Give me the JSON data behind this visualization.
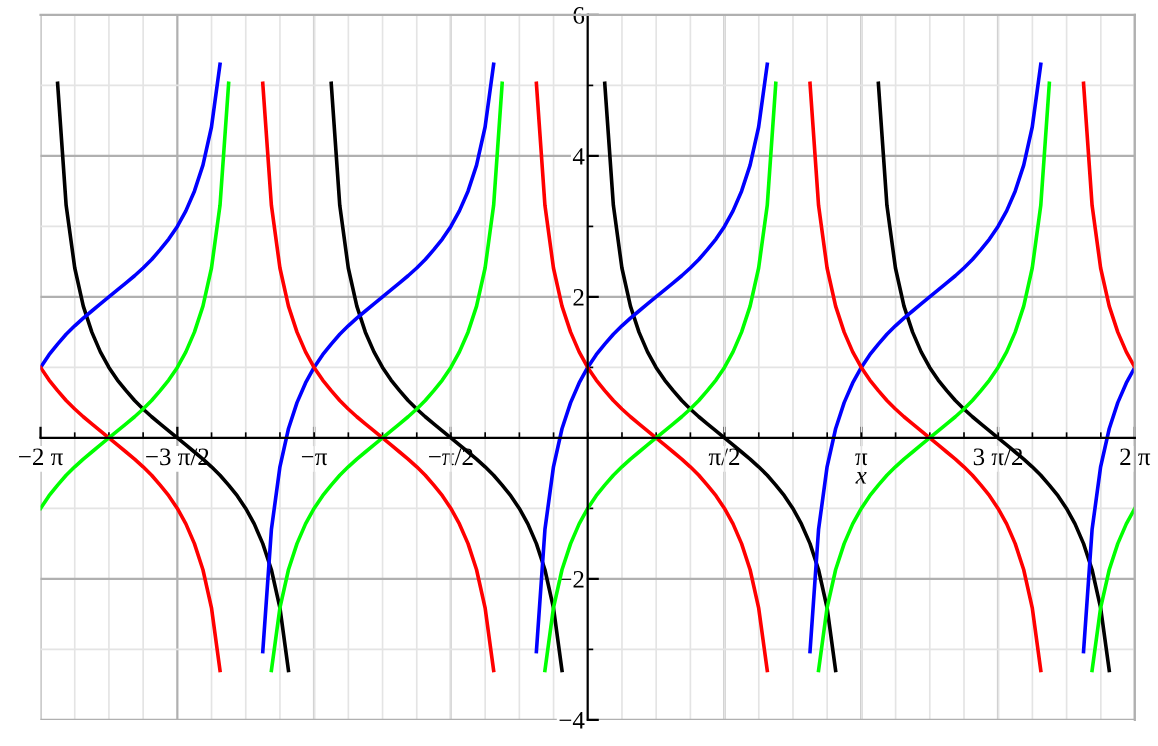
{
  "chart_data": {
    "type": "line",
    "xlabel": "x",
    "x": [
      -6.283,
      -6.185,
      -6.087,
      -5.989,
      -5.89,
      -5.792,
      -5.694,
      -5.596,
      -5.498,
      -5.4,
      -5.301,
      -5.203,
      -5.105,
      -5.007,
      -4.909,
      -4.811,
      -4.712,
      -4.614,
      -4.516,
      -4.418,
      -4.32,
      -4.222,
      -4.123,
      -4.025,
      -3.927,
      -3.829,
      -3.731,
      -3.632,
      -3.534,
      -3.436,
      -3.338,
      -3.24,
      -3.142,
      -3.043,
      -2.945,
      -2.847,
      -2.749,
      -2.651,
      -2.553,
      -2.454,
      -2.356,
      -2.258,
      -2.16,
      -2.062,
      -1.963,
      -1.865,
      -1.767,
      -1.669,
      -1.571,
      -1.473,
      -1.374,
      -1.276,
      -1.178,
      -1.08,
      -0.982,
      -0.884,
      -0.785,
      -0.687,
      -0.589,
      -0.491,
      -0.393,
      -0.295,
      -0.196,
      -0.098,
      0,
      0.098,
      0.196,
      0.295,
      0.393,
      0.491,
      0.589,
      0.687,
      0.785,
      0.884,
      0.982,
      1.08,
      1.178,
      1.276,
      1.374,
      1.473,
      1.571,
      1.669,
      1.767,
      1.865,
      1.963,
      2.062,
      2.16,
      2.258,
      2.356,
      2.454,
      2.553,
      2.651,
      2.749,
      2.847,
      2.945,
      3.043,
      3.142,
      3.24,
      3.338,
      3.436,
      3.534,
      3.632,
      3.731,
      3.829,
      3.927,
      4.025,
      4.123,
      4.222,
      4.32,
      4.418,
      4.516,
      4.614,
      4.712,
      4.811,
      4.909,
      5.007,
      5.105,
      5.203,
      5.301,
      5.4,
      5.498,
      5.596,
      5.694,
      5.792,
      5.89,
      5.989,
      6.087,
      6.185,
      6.283
    ],
    "series": [
      {
        "color": "#000000",
        "values": [
          null,
          null,
          5.03,
          3.3,
          2.41,
          1.87,
          1.5,
          1.22,
          1,
          0.82,
          0.67,
          0.53,
          0.41,
          0.3,
          0.2,
          0.1,
          0,
          -0.1,
          -0.2,
          -0.3,
          -0.41,
          -0.53,
          -0.67,
          -0.82,
          -1,
          -1.22,
          -1.5,
          -1.87,
          -2.41,
          -3.3,
          null,
          null,
          null,
          null,
          5.03,
          3.3,
          2.41,
          1.87,
          1.5,
          1.22,
          1,
          0.82,
          0.67,
          0.53,
          0.41,
          0.3,
          0.2,
          0.1,
          0,
          -0.1,
          -0.2,
          -0.3,
          -0.41,
          -0.53,
          -0.67,
          -0.82,
          -1,
          -1.22,
          -1.5,
          -1.87,
          -2.41,
          -3.3,
          null,
          null,
          null,
          null,
          5.03,
          3.3,
          2.41,
          1.87,
          1.5,
          1.22,
          1,
          0.82,
          0.67,
          0.53,
          0.41,
          0.3,
          0.2,
          0.1,
          0,
          -0.1,
          -0.2,
          -0.3,
          -0.41,
          -0.53,
          -0.67,
          -0.82,
          -1,
          -1.22,
          -1.5,
          -1.87,
          -2.41,
          -3.3,
          null,
          null,
          null,
          null,
          5.03,
          3.3,
          2.41,
          1.87,
          1.5,
          1.22,
          1,
          0.82,
          0.67,
          0.53,
          0.41,
          0.3,
          0.2,
          0.1,
          0,
          -0.1,
          -0.2,
          -0.3,
          -0.41,
          -0.53,
          -0.67,
          -0.82,
          -1,
          -1.22,
          -1.5,
          -1.87,
          -2.41,
          -3.3,
          null,
          null,
          null
        ]
      },
      {
        "color": "#0000ff",
        "values": [
          1,
          1.18,
          1.33,
          1.47,
          1.59,
          1.7,
          1.8,
          1.9,
          2,
          2.1,
          2.2,
          2.3,
          2.41,
          2.53,
          2.67,
          2.82,
          3,
          3.22,
          3.5,
          3.87,
          4.41,
          5.3,
          null,
          null,
          null,
          null,
          -3.03,
          -1.3,
          -0.41,
          0.13,
          0.5,
          0.78,
          1,
          1.18,
          1.33,
          1.47,
          1.59,
          1.7,
          1.8,
          1.9,
          2,
          2.1,
          2.2,
          2.3,
          2.41,
          2.53,
          2.67,
          2.82,
          3,
          3.22,
          3.5,
          3.87,
          4.41,
          5.3,
          null,
          null,
          null,
          null,
          -3.03,
          -1.3,
          -0.41,
          0.13,
          0.5,
          0.78,
          1,
          1.18,
          1.33,
          1.47,
          1.59,
          1.7,
          1.8,
          1.9,
          2,
          2.1,
          2.2,
          2.3,
          2.41,
          2.53,
          2.67,
          2.82,
          3,
          3.22,
          3.5,
          3.87,
          4.41,
          5.3,
          null,
          null,
          null,
          null,
          -3.03,
          -1.3,
          -0.41,
          0.13,
          0.5,
          0.78,
          1,
          1.18,
          1.33,
          1.47,
          1.59,
          1.7,
          1.8,
          1.9,
          2,
          2.1,
          2.2,
          2.3,
          2.41,
          2.53,
          2.67,
          2.82,
          3,
          3.22,
          3.5,
          3.87,
          4.41,
          5.3,
          null,
          null,
          null,
          null,
          -3.03,
          -1.3,
          -0.41,
          0.13,
          0.5,
          0.78,
          1
        ]
      },
      {
        "color": "#ff0000",
        "values": [
          1,
          0.82,
          0.67,
          0.53,
          0.41,
          0.3,
          0.2,
          0.1,
          0,
          -0.1,
          -0.2,
          -0.3,
          -0.41,
          -0.53,
          -0.67,
          -0.82,
          -1,
          -1.22,
          -1.5,
          -1.87,
          -2.41,
          -3.3,
          null,
          null,
          null,
          null,
          5.03,
          3.3,
          2.41,
          1.87,
          1.5,
          1.22,
          1,
          0.82,
          0.67,
          0.53,
          0.41,
          0.3,
          0.2,
          0.1,
          0,
          -0.1,
          -0.2,
          -0.3,
          -0.41,
          -0.53,
          -0.67,
          -0.82,
          -1,
          -1.22,
          -1.5,
          -1.87,
          -2.41,
          -3.3,
          null,
          null,
          null,
          null,
          5.03,
          3.3,
          2.41,
          1.87,
          1.5,
          1.22,
          1,
          0.82,
          0.67,
          0.53,
          0.41,
          0.3,
          0.2,
          0.1,
          0,
          -0.1,
          -0.2,
          -0.3,
          -0.41,
          -0.53,
          -0.67,
          -0.82,
          -1,
          -1.22,
          -1.5,
          -1.87,
          -2.41,
          -3.3,
          null,
          null,
          null,
          null,
          5.03,
          3.3,
          2.41,
          1.87,
          1.5,
          1.22,
          1,
          0.82,
          0.67,
          0.53,
          0.41,
          0.3,
          0.2,
          0.1,
          0,
          -0.1,
          -0.2,
          -0.3,
          -0.41,
          -0.53,
          -0.67,
          -0.82,
          -1,
          -1.22,
          -1.5,
          -1.87,
          -2.41,
          -3.3,
          null,
          null,
          null,
          null,
          5.03,
          3.3,
          2.41,
          1.87,
          1.5,
          1.22,
          1
        ]
      },
      {
        "color": "#00ff00",
        "values": [
          -1,
          -0.82,
          -0.67,
          -0.53,
          -0.41,
          -0.3,
          -0.2,
          -0.1,
          0,
          0.1,
          0.2,
          0.3,
          0.41,
          0.53,
          0.67,
          0.82,
          1,
          1.22,
          1.5,
          1.87,
          2.41,
          3.3,
          5.03,
          null,
          null,
          null,
          null,
          -3.3,
          -2.41,
          -1.87,
          -1.5,
          -1.22,
          -1,
          -0.82,
          -0.67,
          -0.53,
          -0.41,
          -0.3,
          -0.2,
          -0.1,
          0,
          0.1,
          0.2,
          0.3,
          0.41,
          0.53,
          0.67,
          0.82,
          1,
          1.22,
          1.5,
          1.87,
          2.41,
          3.3,
          5.03,
          null,
          null,
          null,
          null,
          -3.3,
          -2.41,
          -1.87,
          -1.5,
          -1.22,
          -1,
          -0.82,
          -0.67,
          -0.53,
          -0.41,
          -0.3,
          -0.2,
          -0.1,
          0,
          0.1,
          0.2,
          0.3,
          0.41,
          0.53,
          0.67,
          0.82,
          1,
          1.22,
          1.5,
          1.87,
          2.41,
          3.3,
          5.03,
          null,
          null,
          null,
          null,
          -3.3,
          -2.41,
          -1.87,
          -1.5,
          -1.22,
          -1,
          -0.82,
          -0.67,
          -0.53,
          -0.41,
          -0.3,
          -0.2,
          -0.1,
          0,
          0.1,
          0.2,
          0.3,
          0.41,
          0.53,
          0.67,
          0.82,
          1,
          1.22,
          1.5,
          1.87,
          2.41,
          3.3,
          5.03,
          null,
          null,
          null,
          null,
          -3.3,
          -2.41,
          -1.87,
          -1.5,
          -1.22,
          -1
        ]
      }
    ],
    "xlim": [
      -6.283,
      6.283
    ],
    "ylim": [
      -4,
      6
    ],
    "xticks": [
      {
        "value": -6.283,
        "label": "−2 π"
      },
      {
        "value": -4.712,
        "label": "−3 π/2"
      },
      {
        "value": -3.142,
        "label": "−π"
      },
      {
        "value": -1.571,
        "label": "−π/2"
      },
      {
        "value": 1.571,
        "label": "π/2"
      },
      {
        "value": 3.142,
        "label": "π"
      },
      {
        "value": 4.712,
        "label": "3 π/2"
      },
      {
        "value": 6.283,
        "label": "2 π"
      }
    ],
    "yticks": [
      {
        "value": -4,
        "label": "−4"
      },
      {
        "value": -2,
        "label": "−2"
      },
      2,
      4,
      6
    ],
    "grid": true,
    "marker": "none",
    "line_style": "solid"
  }
}
